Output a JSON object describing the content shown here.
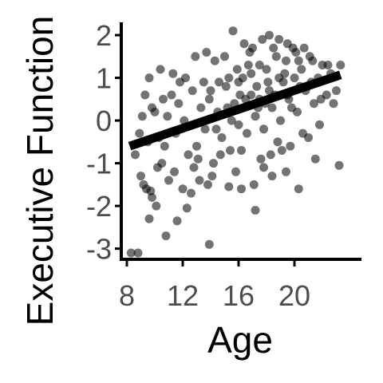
{
  "chart_data": {
    "type": "scatter",
    "xlabel": "Age",
    "ylabel": "Executive Function",
    "xlim": [
      7.6,
      24.8
    ],
    "ylim": [
      -3.25,
      2.3
    ],
    "xticks": [
      8,
      12,
      16,
      20
    ],
    "yticks": [
      -3,
      -2,
      -1,
      0,
      1,
      2
    ],
    "grid": false,
    "legend": "none",
    "point_color": "#000000",
    "point_opacity": 0.55,
    "trend_line": {
      "x": [
        8.2,
        23.3
      ],
      "y": [
        -0.6,
        1.07
      ],
      "color": "#000000"
    },
    "series": [
      {
        "values": [
          [
            8.3,
            -3.1
          ],
          [
            8.8,
            -3.1
          ],
          [
            13.9,
            -2.9
          ],
          [
            10.8,
            -2.7
          ],
          [
            11.6,
            -2.35
          ],
          [
            9.6,
            -2.3
          ],
          [
            17.2,
            -2.1
          ],
          [
            10.1,
            -2.0
          ],
          [
            9.8,
            -1.8
          ],
          [
            12.3,
            -2.05
          ],
          [
            9.0,
            -1.3
          ],
          [
            9.2,
            -1.5
          ],
          [
            9.4,
            -1.6
          ],
          [
            9.7,
            -1.65
          ],
          [
            10.2,
            -1.1
          ],
          [
            10.5,
            -1.0
          ],
          [
            11.0,
            -1.4
          ],
          [
            11.4,
            -1.2
          ],
          [
            12.0,
            -1.6
          ],
          [
            12.6,
            -1.7
          ],
          [
            13.2,
            -1.4
          ],
          [
            13.8,
            -1.5
          ],
          [
            15.3,
            -1.55
          ],
          [
            16.2,
            -1.6
          ],
          [
            17.1,
            -1.5
          ],
          [
            18.4,
            -1.3
          ],
          [
            19.4,
            -1.2
          ],
          [
            20.3,
            -1.6
          ],
          [
            21.5,
            -0.9
          ],
          [
            23.2,
            -1.05
          ],
          [
            8.6,
            -0.8
          ],
          [
            8.9,
            -0.3
          ],
          [
            9.1,
            0.1
          ],
          [
            9.5,
            -0.5
          ],
          [
            9.8,
            0.3
          ],
          [
            10.0,
            0.2
          ],
          [
            10.3,
            -0.4
          ],
          [
            10.6,
            0.5
          ],
          [
            10.9,
            0.1
          ],
          [
            11.2,
            0.6
          ],
          [
            11.5,
            -0.3
          ],
          [
            11.7,
            0.4
          ],
          [
            12.1,
            0.0
          ],
          [
            12.4,
            -0.8
          ],
          [
            12.7,
            0.7
          ],
          [
            13.0,
            -0.6
          ],
          [
            13.3,
            0.3
          ],
          [
            13.6,
            -0.2
          ],
          [
            13.9,
            0.5
          ],
          [
            14.2,
            -1.0
          ],
          [
            14.5,
            0.2
          ],
          [
            14.8,
            -0.4
          ],
          [
            15.1,
            0.8
          ],
          [
            15.4,
            -0.7
          ],
          [
            15.7,
            0.4
          ],
          [
            16.0,
            -0.1
          ],
          [
            16.3,
            1.0
          ],
          [
            16.6,
            -0.3
          ],
          [
            16.9,
            0.6
          ],
          [
            17.2,
            0.1
          ],
          [
            17.5,
            1.3
          ],
          [
            17.8,
            -0.2
          ],
          [
            18.1,
            0.9
          ],
          [
            18.4,
            0.3
          ],
          [
            18.7,
            1.5
          ],
          [
            19.0,
            0.0
          ],
          [
            19.3,
            1.1
          ],
          [
            19.6,
            0.5
          ],
          [
            19.9,
            1.7
          ],
          [
            20.2,
            0.2
          ],
          [
            20.5,
            1.2
          ],
          [
            20.8,
            0.7
          ],
          [
            21.1,
            1.5
          ],
          [
            21.4,
            0.4
          ],
          [
            21.7,
            1.0
          ],
          [
            22.0,
            1.3
          ],
          [
            22.3,
            0.6
          ],
          [
            22.6,
            1.1
          ],
          [
            23.0,
            0.7
          ],
          [
            23.3,
            1.3
          ],
          [
            9.3,
            0.6
          ],
          [
            9.6,
            1.0
          ],
          [
            10.4,
            1.2
          ],
          [
            11.8,
            0.9
          ],
          [
            12.9,
            1.5
          ],
          [
            13.7,
            1.6
          ],
          [
            14.3,
            1.4
          ],
          [
            15.0,
            1.5
          ],
          [
            15.6,
            2.1
          ],
          [
            16.4,
            1.8
          ],
          [
            17.0,
            1.7
          ],
          [
            17.7,
            1.9
          ],
          [
            18.2,
            2.0
          ],
          [
            18.9,
            1.9
          ],
          [
            19.5,
            1.8
          ],
          [
            20.1,
            1.6
          ],
          [
            20.7,
            1.7
          ],
          [
            21.3,
            1.4
          ],
          [
            22.4,
            1.3
          ],
          [
            16.8,
            1.6
          ],
          [
            14.6,
            0.9
          ],
          [
            15.2,
            0.3
          ],
          [
            15.9,
            1.2
          ],
          [
            16.5,
            0.5
          ],
          [
            17.3,
            0.8
          ],
          [
            17.9,
            0.4
          ],
          [
            18.6,
            0.6
          ],
          [
            19.2,
            0.9
          ],
          [
            19.8,
            0.3
          ],
          [
            20.4,
            0.8
          ],
          [
            14.0,
            0.7
          ],
          [
            14.4,
            -0.2
          ],
          [
            15.5,
            0.0
          ],
          [
            16.1,
            0.6
          ],
          [
            16.7,
            1.3
          ],
          [
            17.4,
            0.3
          ],
          [
            18.0,
            1.2
          ],
          [
            18.8,
            -0.5
          ],
          [
            19.7,
            -0.6
          ],
          [
            20.6,
            -0.3
          ],
          [
            13.1,
            -0.9
          ],
          [
            13.5,
            0.9
          ],
          [
            14.7,
            -0.8
          ],
          [
            15.8,
            -1.2
          ],
          [
            17.6,
            -0.9
          ],
          [
            18.3,
            -0.8
          ],
          [
            19.1,
            -0.7
          ],
          [
            21.0,
            -0.4
          ],
          [
            21.8,
            -0.1
          ],
          [
            12.2,
            1.0
          ],
          [
            11.3,
            1.1
          ],
          [
            10.7,
            -0.6
          ],
          [
            12.8,
            -1.1
          ],
          [
            14.1,
            -1.3
          ],
          [
            16.2,
            -0.7
          ],
          [
            17.8,
            -1.1
          ],
          [
            18.5,
            1.7
          ],
          [
            19.4,
            1.4
          ],
          [
            20.0,
            1.0
          ],
          [
            15.3,
            1.0
          ],
          [
            16.0,
            0.9
          ],
          [
            16.9,
            1.1
          ],
          [
            17.5,
            0.5
          ],
          [
            18.2,
            0.7
          ],
          [
            18.9,
            1.0
          ],
          [
            19.5,
            0.6
          ],
          [
            20.3,
            1.4
          ],
          [
            21.2,
            0.9
          ],
          [
            21.9,
            0.5
          ],
          [
            22.8,
            0.4
          ]
        ]
      }
    ]
  }
}
